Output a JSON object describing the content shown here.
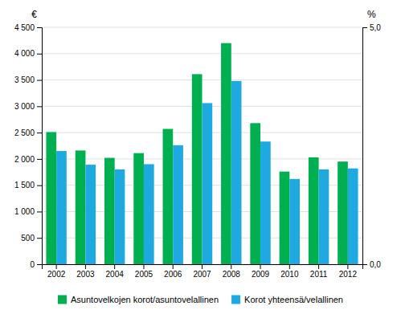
{
  "chart_data": {
    "type": "bar",
    "categories": [
      "2002",
      "2003",
      "2004",
      "2005",
      "2006",
      "2007",
      "2008",
      "2009",
      "2010",
      "2011",
      "2012"
    ],
    "series": [
      {
        "name": "Asuntovelkojen korot/asuntovelallinen",
        "color": "#00B050",
        "values": [
          2510,
          2160,
          2020,
          2110,
          2570,
          3610,
          4200,
          2680,
          1760,
          2030,
          1950
        ]
      },
      {
        "name": "Korot yhteensä/velallinen",
        "color": "#1EAAE0",
        "values": [
          2150,
          1890,
          1800,
          1900,
          2260,
          3060,
          3480,
          2330,
          1620,
          1800,
          1820
        ]
      }
    ],
    "y_label": "€",
    "y2_label": "%",
    "ylim": [
      0,
      4500
    ],
    "yticks": [
      0,
      500,
      {
        "value": 1000,
        "label": "1 000"
      },
      {
        "value": 1500,
        "label": "1 500"
      },
      {
        "value": 2000,
        "label": "2 000"
      },
      {
        "value": 2500,
        "label": "2 500"
      },
      {
        "value": 3000,
        "label": "3 000"
      },
      {
        "value": 3500,
        "label": "3 500"
      },
      {
        "value": 4000,
        "label": "4 000"
      },
      {
        "value": 4500,
        "label": "4 500"
      }
    ],
    "y2lim": [
      0,
      5.0
    ],
    "y2ticks": [
      {
        "value": 0,
        "label": "0,0"
      },
      {
        "value": 5,
        "label": "5,0"
      }
    ],
    "grid": true,
    "legend": "bottom"
  }
}
